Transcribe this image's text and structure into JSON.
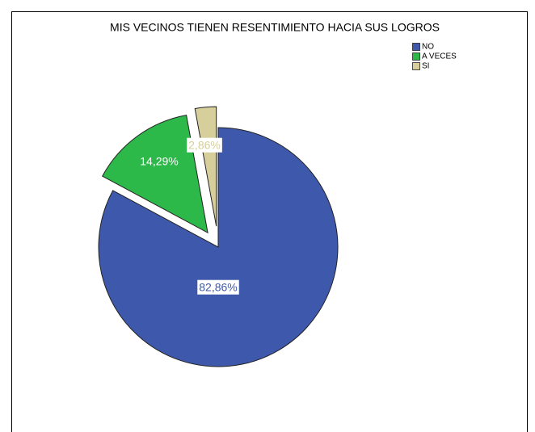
{
  "chart_data": {
    "type": "pie",
    "title": "MIS VECINOS TIENEN RESENTIMIENTO HACIA SUS LOGROS",
    "categories": [
      "NO",
      "A VECES",
      "SI"
    ],
    "values": [
      82.86,
      14.29,
      2.86
    ],
    "value_labels": [
      "82,86%",
      "14,29%",
      "2,86%"
    ],
    "colors": [
      "#3e59ac",
      "#2db84a",
      "#d6cf9c"
    ],
    "legend": "top-right"
  }
}
